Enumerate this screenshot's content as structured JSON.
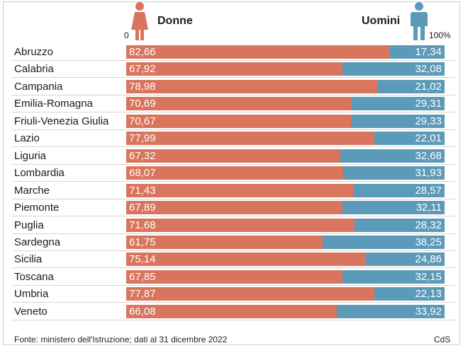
{
  "legend": {
    "women": "Donne",
    "men": "Uomini"
  },
  "axis": {
    "start": "0",
    "end": "100%"
  },
  "icons": {
    "women": "woman-icon",
    "men": "man-icon"
  },
  "colors": {
    "women": "#d9745d",
    "men": "#5b9ab8"
  },
  "chart_data": {
    "type": "bar",
    "stacked": true,
    "orientation": "horizontal",
    "categories": [
      "Abruzzo",
      "Calabria",
      "Campania",
      "Emilia-Romagna",
      "Friuli-Venezia Giulia",
      "Lazio",
      "Liguria",
      "Lombardia",
      "Marche",
      "Piemonte",
      "Puglia",
      "Sardegna",
      "Sicilia",
      "Toscana",
      "Umbria",
      "Veneto"
    ],
    "series": [
      {
        "name": "Donne",
        "values": [
          82.66,
          67.92,
          78.98,
          70.69,
          70.67,
          77.99,
          67.32,
          68.07,
          71.43,
          67.89,
          71.68,
          61.75,
          75.14,
          67.85,
          77.87,
          66.08
        ],
        "labels": [
          "82,66",
          "67,92",
          "78,98",
          "70,69",
          "70,67",
          "77,99",
          "67,32",
          "68,07",
          "71,43",
          "67,89",
          "71,68",
          "61,75",
          "75,14",
          "67,85",
          "77,87",
          "66,08"
        ]
      },
      {
        "name": "Uomini",
        "values": [
          17.34,
          32.08,
          21.02,
          29.31,
          29.33,
          22.01,
          32.68,
          31.93,
          28.57,
          32.11,
          28.32,
          38.25,
          24.86,
          32.15,
          22.13,
          33.92
        ],
        "labels": [
          "17,34",
          "32,08",
          "21,02",
          "29,31",
          "29,33",
          "22,01",
          "32,68",
          "31,93",
          "28,57",
          "32,11",
          "28,32",
          "38,25",
          "24,86",
          "32,15",
          "22,13",
          "33,92"
        ]
      }
    ],
    "xlim": [
      0,
      100
    ]
  },
  "footer": {
    "source": "Fonte: ministero dell'Istruzione; dati al 31 dicembre 2022",
    "credit": "CdS"
  }
}
